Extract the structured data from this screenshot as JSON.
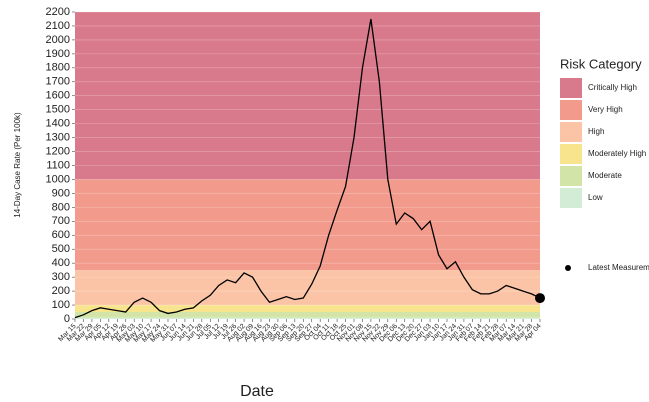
{
  "chart_data": {
    "type": "line",
    "y_label": "14-Day Case Rate (Per 100k)",
    "x_label": "Date",
    "legend_title": "Risk Category",
    "latest_label": "Latest Measurement",
    "color": "#000000",
    "grid": true,
    "ylim": [
      0,
      2200
    ],
    "yticks": [
      0,
      100,
      200,
      300,
      400,
      500,
      600,
      700,
      800,
      900,
      1000,
      1100,
      1200,
      1300,
      1400,
      1500,
      1600,
      1700,
      1800,
      1900,
      2000,
      2100,
      2200
    ],
    "bands": [
      {
        "name": "Critically High",
        "color": "#d97a8c",
        "range": [
          1000,
          2200
        ]
      },
      {
        "name": "Very High",
        "color": "#f29b8c",
        "range": [
          350,
          1000
        ]
      },
      {
        "name": "High",
        "color": "#fbc4a6",
        "range": [
          100,
          350
        ]
      },
      {
        "name": "Moderately High",
        "color": "#f8e48c",
        "range": [
          50,
          100
        ]
      },
      {
        "name": "Moderate",
        "color": "#d2e4a8",
        "range": [
          10,
          50
        ]
      },
      {
        "name": "Low",
        "color": "#d3ecd5",
        "range": [
          0,
          10
        ]
      }
    ],
    "categories": [
      "Mar 15",
      "Mar 22",
      "Mar 29",
      "Apr 05",
      "Apr 12",
      "Apr 19",
      "Apr 26",
      "May 03",
      "May 10",
      "May 17",
      "May 24",
      "May 31",
      "Jun 07",
      "Jun 14",
      "Jun 21",
      "Jun 28",
      "Jul 05",
      "Jul 12",
      "Jul 19",
      "Jul 26",
      "Aug 02",
      "Aug 09",
      "Aug 16",
      "Aug 23",
      "Aug 30",
      "Sep 06",
      "Sep 13",
      "Sep 20",
      "Sep 27",
      "Oct 04",
      "Oct 11",
      "Oct 18",
      "Oct 25",
      "Nov 01",
      "Nov 08",
      "Nov 15",
      "Nov 22",
      "Nov 29",
      "Dec 06",
      "Dec 13",
      "Dec 20",
      "Dec 27",
      "Jan 03",
      "Jan 10",
      "Jan 17",
      "Jan 24",
      "Jan 31",
      "Feb 07",
      "Feb 14",
      "Feb 21",
      "Feb 28",
      "Mar 07",
      "Mar 14",
      "Mar 21",
      "Mar 28",
      "Apr 04"
    ],
    "values": [
      10,
      30,
      60,
      80,
      70,
      60,
      50,
      120,
      150,
      120,
      60,
      40,
      50,
      70,
      80,
      130,
      170,
      240,
      280,
      260,
      330,
      300,
      200,
      120,
      140,
      160,
      140,
      150,
      250,
      380,
      600,
      780,
      950,
      1300,
      1800,
      2150,
      1700,
      1000,
      680,
      760,
      720,
      640,
      700,
      460,
      360,
      410,
      300,
      210,
      180,
      180,
      200,
      240,
      220,
      200,
      180,
      150
    ]
  }
}
